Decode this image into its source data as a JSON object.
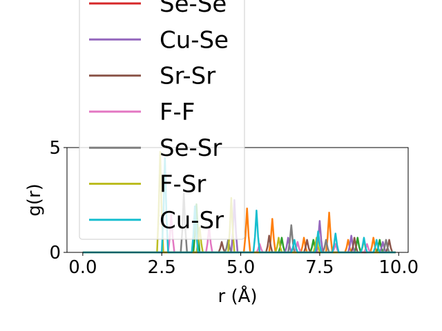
{
  "chart_data": {
    "type": "line",
    "xlabel": "r (Å)",
    "ylabel": "g(r)",
    "xlim": [
      -0.5,
      10.3
    ],
    "ylim": [
      0,
      5
    ],
    "xticks": [
      0.0,
      2.5,
      5.0,
      7.5,
      10.0
    ],
    "xtick_labels": [
      "0.0",
      "2.5",
      "5.0",
      "7.5",
      "10.0"
    ],
    "yticks": [
      0,
      5
    ],
    "ytick_labels": [
      "0",
      "5"
    ],
    "grid": false,
    "legend_placement": "upper-left",
    "series": [
      {
        "name": "Se-Se",
        "color": "#d62728",
        "visible_in_plot": false,
        "peaks": []
      },
      {
        "name": "",
        "color": "#ff7f0e",
        "visible_in_plot": true,
        "peaks": [
          [
            5.2,
            2.1
          ],
          [
            6.0,
            1.6
          ],
          [
            7.0,
            0.7
          ],
          [
            7.8,
            1.9
          ],
          [
            8.4,
            0.6
          ],
          [
            9.2,
            0.7
          ]
        ]
      },
      {
        "name": "",
        "color": "#2ca02c",
        "visible_in_plot": true,
        "peaks": [
          [
            3.6,
            2.3
          ],
          [
            6.3,
            0.7
          ],
          [
            7.3,
            0.6
          ],
          [
            8.7,
            0.7
          ],
          [
            9.4,
            0.6
          ]
        ]
      },
      {
        "name": "Cu-Se",
        "color": "#9467bd",
        "visible_in_plot": true,
        "peaks": [
          [
            4.8,
            2.5
          ],
          [
            6.5,
            0.7
          ],
          [
            7.5,
            1.5
          ],
          [
            8.5,
            0.8
          ],
          [
            9.5,
            0.5
          ]
        ]
      },
      {
        "name": "Sr-Sr",
        "color": "#8c564b",
        "visible_in_plot": true,
        "peaks": [
          [
            4.4,
            0.5
          ],
          [
            5.9,
            0.8
          ],
          [
            7.1,
            0.6
          ],
          [
            8.6,
            0.7
          ],
          [
            9.7,
            0.6
          ]
        ]
      },
      {
        "name": "F-F",
        "color": "#e377c2",
        "visible_in_plot": true,
        "peaks": [
          [
            2.8,
            1.8
          ],
          [
            4.0,
            1.2
          ],
          [
            5.6,
            0.4
          ],
          [
            6.8,
            0.5
          ],
          [
            8.0,
            0.4
          ],
          [
            9.0,
            0.4
          ]
        ]
      },
      {
        "name": "Se-Sr",
        "color": "#7f7f7f",
        "visible_in_plot": true,
        "peaks": [
          [
            3.2,
            2.8
          ],
          [
            4.6,
            0.6
          ],
          [
            6.6,
            1.3
          ],
          [
            7.7,
            0.6
          ],
          [
            9.6,
            0.6
          ]
        ]
      },
      {
        "name": "F-Sr",
        "color": "#bcbd22",
        "visible_in_plot": true,
        "peaks": [
          [
            2.45,
            4.8
          ],
          [
            3.7,
            1.2
          ],
          [
            4.7,
            2.6
          ],
          [
            6.2,
            0.7
          ],
          [
            7.4,
            0.7
          ],
          [
            8.9,
            0.6
          ]
        ]
      },
      {
        "name": "Cu-Sr",
        "color": "#17becf",
        "visible_in_plot": true,
        "peaks": [
          [
            2.6,
            4.5
          ],
          [
            3.55,
            2.2
          ],
          [
            5.5,
            2.0
          ],
          [
            6.7,
            0.6
          ],
          [
            7.45,
            1.0
          ],
          [
            8.0,
            0.9
          ],
          [
            8.9,
            0.7
          ],
          [
            9.3,
            0.6
          ]
        ]
      }
    ],
    "legend": [
      {
        "label": "Se-Se",
        "color": "#d62728"
      },
      {
        "label": "Cu-Se",
        "color": "#9467bd"
      },
      {
        "label": "Sr-Sr",
        "color": "#8c564b"
      },
      {
        "label": "F-F",
        "color": "#e377c2"
      },
      {
        "label": "Se-Sr",
        "color": "#7f7f7f"
      },
      {
        "label": "F-Sr",
        "color": "#bcbd22"
      },
      {
        "label": "Cu-Sr",
        "color": "#17becf"
      }
    ]
  }
}
